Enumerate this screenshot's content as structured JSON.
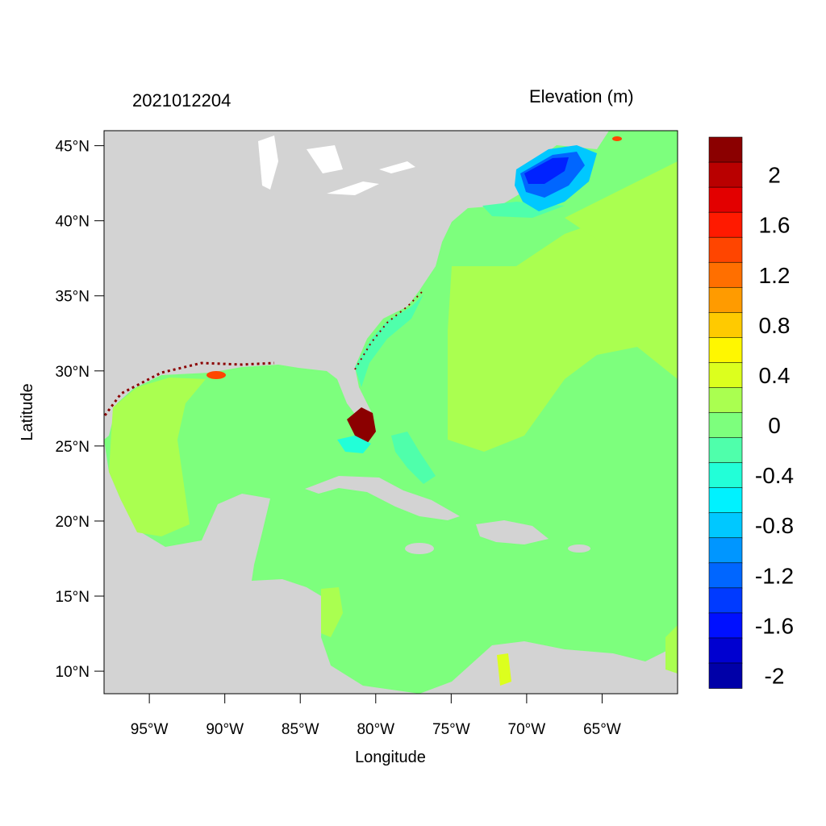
{
  "header": {
    "timestamp": "2021012204",
    "variable": "Elevation (m)"
  },
  "axes": {
    "xlabel": "Longitude",
    "ylabel": "Latitude",
    "x_ticks": [
      "95°W",
      "90°W",
      "85°W",
      "80°W",
      "75°W",
      "70°W",
      "65°W"
    ],
    "x_tick_values": [
      -95,
      -90,
      -85,
      -80,
      -75,
      -70,
      -65
    ],
    "y_ticks": [
      "45°N",
      "40°N",
      "35°N",
      "30°N",
      "25°N",
      "20°N",
      "15°N",
      "10°N"
    ],
    "y_tick_values": [
      45,
      40,
      35,
      30,
      25,
      20,
      15,
      10
    ],
    "lon_range": [
      -98,
      -60
    ],
    "lat_range": [
      8.5,
      46
    ]
  },
  "colorbar": {
    "labels": [
      "2",
      "1.6",
      "1.2",
      "0.8",
      "0.4",
      "0",
      "-0.4",
      "-0.8",
      "-1.2",
      "-1.6",
      "-2"
    ],
    "colors": [
      "#8b0000",
      "#b90000",
      "#e30000",
      "#ff1a00",
      "#ff4500",
      "#ff6f00",
      "#ff9b00",
      "#ffca00",
      "#fff700",
      "#dcff1e",
      "#aaff50",
      "#7dff7d",
      "#4fffab",
      "#22ffd8",
      "#00f2ff",
      "#00c8ff",
      "#0096ff",
      "#0066ff",
      "#003aff",
      "#0010ff",
      "#0000d0",
      "#0000a8"
    ]
  },
  "map_colors": {
    "land": "#d3d3d3",
    "ocean": "#7dff7d",
    "shelf_positive": "#aaff50",
    "negative_shelf": "#4fffab",
    "surge_high": "#8b0000",
    "low_water": "#0022ff"
  }
}
